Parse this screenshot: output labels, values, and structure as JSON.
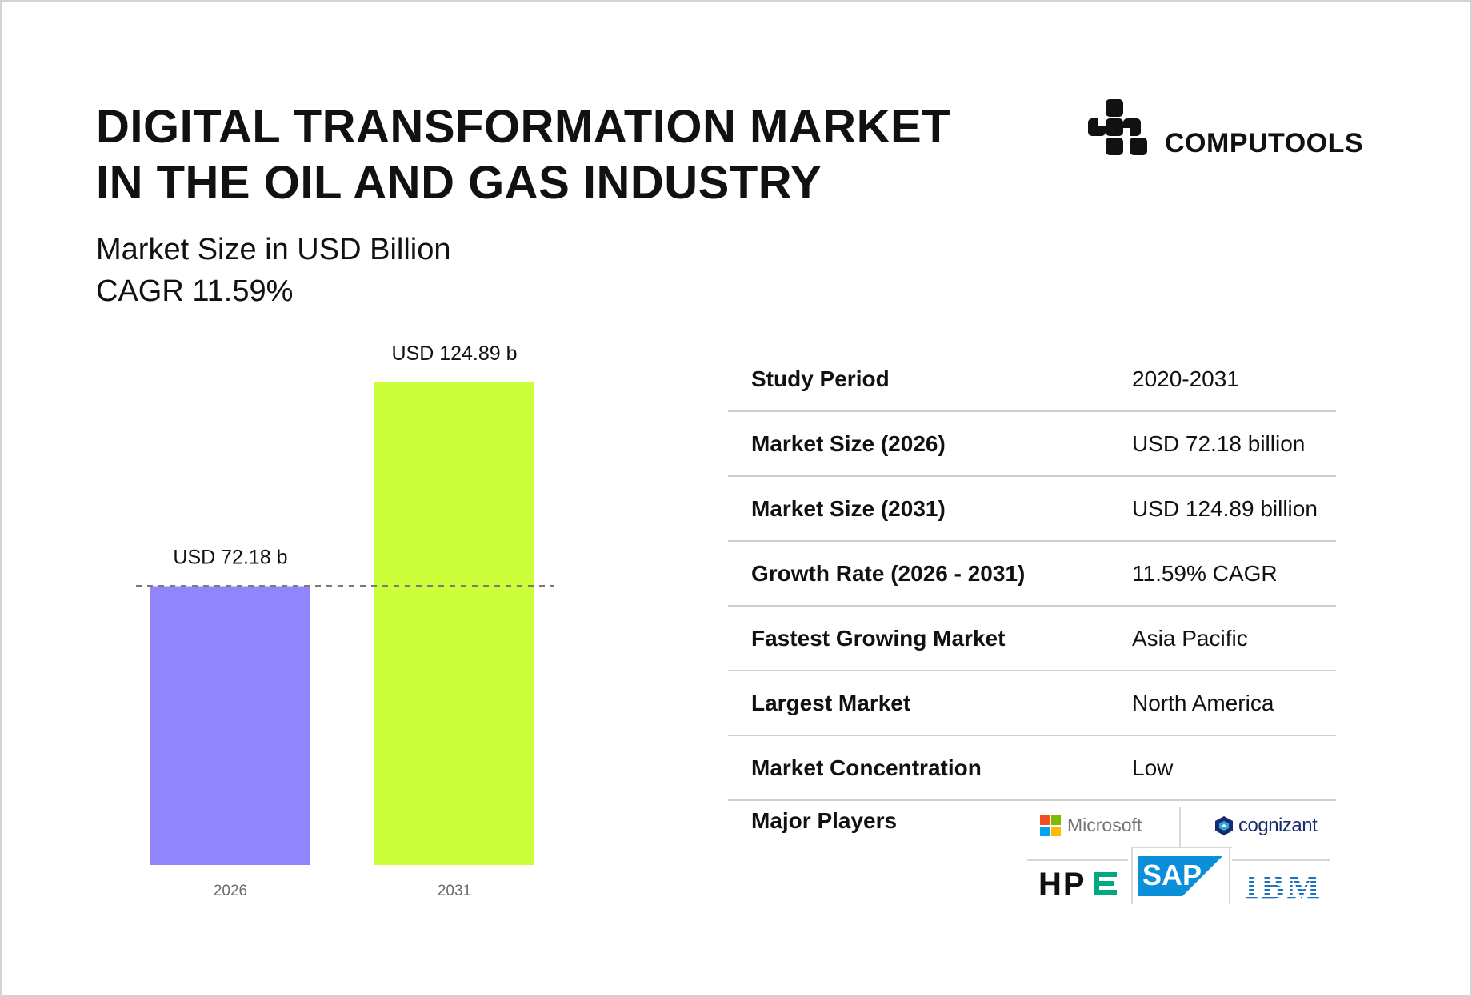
{
  "header": {
    "title_line1": "DIGITAL TRANSFORMATION MARKET",
    "title_line2": "IN THE OIL AND GAS INDUSTRY",
    "subtitle_line1": "Market Size in USD Billion",
    "subtitle_line2": "CAGR 11.59%"
  },
  "brand": {
    "name": "COMPUTOOLS",
    "icon": "computools-logo-icon"
  },
  "chart_data": {
    "type": "bar",
    "categories": [
      "2026",
      "2031"
    ],
    "values": [
      72.18,
      124.89
    ],
    "data_labels": [
      "USD 72.18 b",
      "USD 124.89 b"
    ],
    "colors": [
      "#9185fc",
      "#ccff3a"
    ],
    "reference_line": {
      "value": 72.18,
      "style": "dashed",
      "color": "#7a7a7a"
    },
    "ylim": [
      0,
      124.89
    ],
    "grid": false,
    "legend": "none"
  },
  "table": {
    "rows": [
      {
        "label": "Study Period",
        "value": "2020-2031"
      },
      {
        "label": "Market Size (2026)",
        "value": "USD 72.18 billion"
      },
      {
        "label": "Market Size (2031)",
        "value": "USD 124.89 billion"
      },
      {
        "label": "Growth Rate (2026 - 2031)",
        "value": "11.59% CAGR"
      },
      {
        "label": "Fastest Growing Market",
        "value": "Asia Pacific"
      },
      {
        "label": "Largest Market",
        "value": "North America"
      },
      {
        "label": "Market Concentration",
        "value": "Low"
      }
    ],
    "players_label": "Major Players",
    "players": [
      "Microsoft",
      "cognizant",
      "HPE",
      "SAP",
      "IBM"
    ]
  },
  "colors": {
    "bar_2026": "#9185fc",
    "bar_2031": "#ccff3a",
    "divider": "#cfcfcf",
    "text": "#111111",
    "tick": "#6b6b6b"
  }
}
